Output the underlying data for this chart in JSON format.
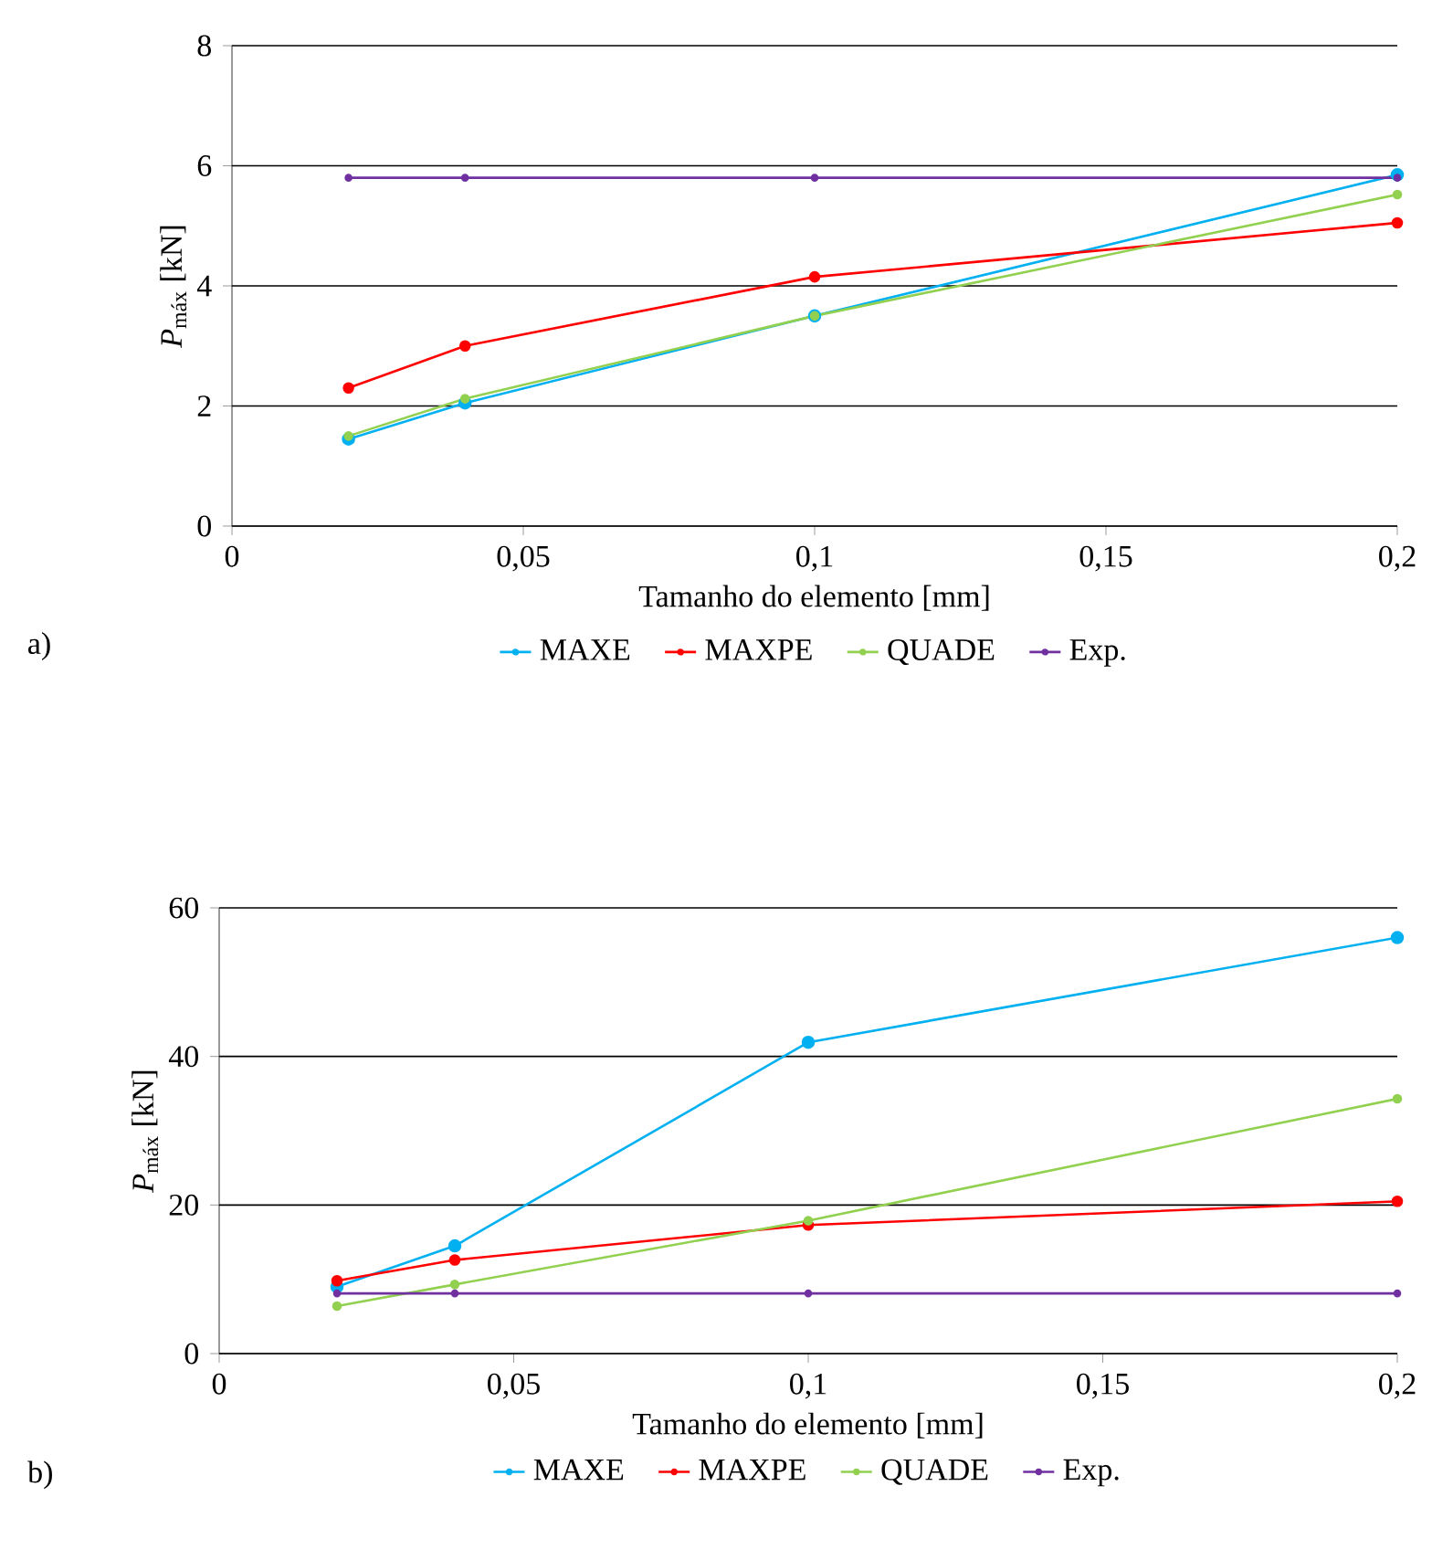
{
  "chart_data": [
    {
      "type": "line",
      "xlabel": "Tamanho do elemento [mm]",
      "ylabel": "*P*$_{máx}$ [kN]",
      "x": [
        0.02,
        0.04,
        0.1,
        0.2
      ],
      "series": [
        {
          "name": "MAXE",
          "color": "#00b0f0",
          "values": [
            1.45,
            2.05,
            3.5,
            5.85
          ]
        },
        {
          "name": "MAXPE",
          "color": "#ff0000",
          "values": [
            2.3,
            3.0,
            4.15,
            5.05
          ]
        },
        {
          "name": "QUADE",
          "color": "#92d050",
          "values": [
            1.5,
            2.12,
            3.5,
            5.52
          ]
        },
        {
          "name": "Exp.",
          "color": "#7030a0",
          "values": [
            5.8,
            5.8,
            5.8,
            5.8
          ]
        }
      ],
      "xlim": [
        0,
        0.2
      ],
      "xticks": [
        0,
        {
          "value": 0.05,
          "label": "0,05"
        },
        {
          "value": 0.1,
          "label": "0,1"
        },
        {
          "value": 0.15,
          "label": "0,15"
        },
        {
          "value": 0.2,
          "label": "0,2"
        }
      ],
      "ylim": [
        0,
        8
      ],
      "yticks": [
        0,
        2,
        4,
        6,
        8
      ],
      "grid": "y",
      "legend": "bottom",
      "marker": "circle",
      "line_style": "solid",
      "annotations": [
        "a)"
      ]
    },
    {
      "type": "line",
      "xlabel": "Tamanho do elemento [mm]",
      "ylabel": "*P*$_{máx}$ [kN]",
      "x": [
        0.02,
        0.04,
        0.1,
        0.2
      ],
      "series": [
        {
          "name": "MAXE",
          "color": "#00b0f0",
          "values": [
            9.0,
            14.5,
            41.9,
            56.0
          ]
        },
        {
          "name": "MAXPE",
          "color": "#ff0000",
          "values": [
            9.8,
            12.6,
            17.3,
            20.5
          ]
        },
        {
          "name": "QUADE",
          "color": "#92d050",
          "values": [
            6.4,
            9.3,
            17.9,
            34.3
          ]
        },
        {
          "name": "Exp.",
          "color": "#7030a0",
          "values": [
            8.1,
            8.1,
            8.1,
            8.1
          ]
        }
      ],
      "xlim": [
        0,
        0.2
      ],
      "xticks": [
        0,
        {
          "value": 0.05,
          "label": "0,05"
        },
        {
          "value": 0.1,
          "label": "0,1"
        },
        {
          "value": 0.15,
          "label": "0,15"
        },
        {
          "value": 0.2,
          "label": "0,2"
        }
      ],
      "ylim": [
        0,
        60
      ],
      "yticks": [
        0,
        20,
        40,
        60
      ],
      "grid": "y",
      "legend": "bottom",
      "marker": "circle",
      "line_style": "solid",
      "annotations": [
        "b)"
      ]
    }
  ]
}
